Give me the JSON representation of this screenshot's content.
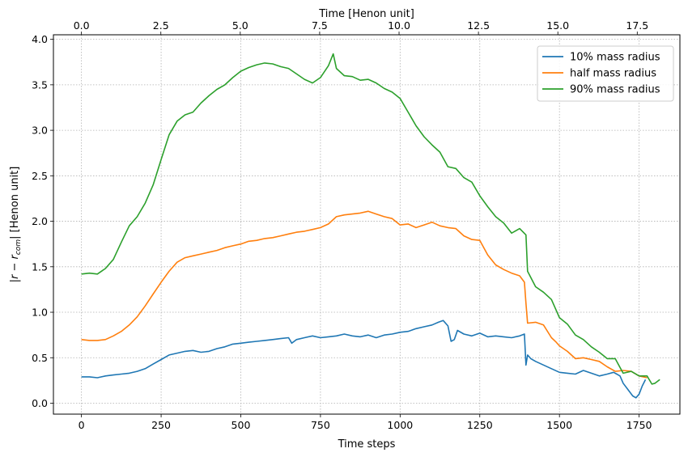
{
  "chart_data": {
    "type": "line",
    "xlabel": "Time steps",
    "x2label": "Time [Henon unit]",
    "ylabel": "|r − r_com| [Henon unit]",
    "xlim": [
      -88,
      1878
    ],
    "ylim": [
      -0.12,
      4.05
    ],
    "x2lim": [
      -0.883,
      18.843
    ],
    "xticks": [
      0,
      250,
      500,
      750,
      1000,
      1250,
      1500,
      1750
    ],
    "xtick_labels": [
      "0",
      "250",
      "500",
      "750",
      "1000",
      "1250",
      "1500",
      "1750"
    ],
    "x2ticks": [
      0.0,
      2.5,
      5.0,
      7.5,
      10.0,
      12.5,
      15.0,
      17.5
    ],
    "x2tick_labels": [
      "0.0",
      "2.5",
      "5.0",
      "7.5",
      "10.0",
      "12.5",
      "15.0",
      "17.5"
    ],
    "yticks": [
      0.0,
      0.5,
      1.0,
      1.5,
      2.0,
      2.5,
      3.0,
      3.5,
      4.0
    ],
    "ytick_labels": [
      "0.0",
      "0.5",
      "1.0",
      "1.5",
      "2.0",
      "2.5",
      "3.0",
      "3.5",
      "4.0"
    ],
    "grid": true,
    "legend_position": "top-right",
    "series": [
      {
        "name": "10% mass radius",
        "color": "#1f77b4",
        "x": [
          0,
          25,
          50,
          75,
          100,
          125,
          150,
          175,
          200,
          225,
          250,
          275,
          300,
          325,
          350,
          375,
          400,
          425,
          450,
          475,
          500,
          525,
          550,
          575,
          600,
          625,
          650,
          660,
          675,
          700,
          725,
          750,
          775,
          800,
          825,
          850,
          875,
          900,
          925,
          950,
          975,
          1000,
          1025,
          1050,
          1075,
          1100,
          1120,
          1135,
          1150,
          1160,
          1170,
          1180,
          1200,
          1225,
          1250,
          1275,
          1300,
          1325,
          1350,
          1375,
          1390,
          1395,
          1400,
          1410,
          1425,
          1450,
          1475,
          1500,
          1525,
          1550,
          1575,
          1600,
          1625,
          1650,
          1670,
          1680,
          1690,
          1700,
          1715,
          1730,
          1740,
          1750,
          1760,
          1770
        ],
        "y": [
          0.29,
          0.29,
          0.28,
          0.3,
          0.31,
          0.32,
          0.33,
          0.35,
          0.38,
          0.43,
          0.48,
          0.53,
          0.55,
          0.57,
          0.58,
          0.56,
          0.57,
          0.6,
          0.62,
          0.65,
          0.66,
          0.67,
          0.68,
          0.69,
          0.7,
          0.71,
          0.72,
          0.66,
          0.7,
          0.72,
          0.74,
          0.72,
          0.73,
          0.74,
          0.76,
          0.74,
          0.73,
          0.75,
          0.72,
          0.75,
          0.76,
          0.78,
          0.79,
          0.82,
          0.84,
          0.86,
          0.89,
          0.91,
          0.85,
          0.68,
          0.7,
          0.8,
          0.76,
          0.74,
          0.77,
          0.73,
          0.74,
          0.73,
          0.72,
          0.74,
          0.76,
          0.42,
          0.53,
          0.49,
          0.46,
          0.42,
          0.38,
          0.34,
          0.33,
          0.32,
          0.36,
          0.33,
          0.3,
          0.32,
          0.34,
          0.32,
          0.3,
          0.22,
          0.15,
          0.08,
          0.06,
          0.1,
          0.19,
          0.26
        ]
      },
      {
        "name": "half mass radius",
        "color": "#ff7f0e",
        "x": [
          0,
          25,
          50,
          75,
          100,
          125,
          150,
          175,
          200,
          225,
          250,
          275,
          300,
          325,
          350,
          375,
          400,
          425,
          450,
          475,
          500,
          525,
          550,
          575,
          600,
          625,
          650,
          675,
          700,
          725,
          750,
          775,
          800,
          825,
          850,
          875,
          900,
          925,
          950,
          975,
          1000,
          1025,
          1050,
          1075,
          1100,
          1125,
          1150,
          1175,
          1200,
          1225,
          1250,
          1275,
          1300,
          1325,
          1350,
          1375,
          1390,
          1395,
          1400,
          1425,
          1450,
          1475,
          1490,
          1500,
          1525,
          1550,
          1575,
          1600,
          1625,
          1650,
          1675,
          1700,
          1725,
          1750,
          1775
        ],
        "y": [
          0.7,
          0.69,
          0.69,
          0.7,
          0.74,
          0.79,
          0.86,
          0.95,
          1.07,
          1.2,
          1.33,
          1.45,
          1.55,
          1.6,
          1.62,
          1.64,
          1.66,
          1.68,
          1.71,
          1.73,
          1.75,
          1.78,
          1.79,
          1.81,
          1.82,
          1.84,
          1.86,
          1.88,
          1.89,
          1.91,
          1.93,
          1.97,
          2.05,
          2.07,
          2.08,
          2.09,
          2.11,
          2.08,
          2.05,
          2.03,
          1.96,
          1.97,
          1.93,
          1.96,
          1.99,
          1.95,
          1.93,
          1.92,
          1.84,
          1.8,
          1.79,
          1.63,
          1.52,
          1.47,
          1.43,
          1.4,
          1.33,
          1.1,
          0.88,
          0.89,
          0.86,
          0.72,
          0.67,
          0.63,
          0.57,
          0.49,
          0.5,
          0.48,
          0.46,
          0.4,
          0.35,
          0.36,
          0.35,
          0.3,
          0.28
        ]
      },
      {
        "name": "90% mass radius",
        "color": "#2ca02c",
        "x": [
          0,
          25,
          50,
          75,
          100,
          125,
          150,
          175,
          200,
          225,
          250,
          275,
          300,
          325,
          350,
          375,
          400,
          425,
          450,
          475,
          500,
          525,
          550,
          575,
          600,
          625,
          650,
          675,
          700,
          725,
          750,
          775,
          790,
          800,
          825,
          850,
          875,
          900,
          925,
          950,
          975,
          1000,
          1025,
          1050,
          1075,
          1100,
          1125,
          1150,
          1175,
          1200,
          1225,
          1250,
          1275,
          1300,
          1325,
          1350,
          1375,
          1395,
          1400,
          1425,
          1450,
          1475,
          1500,
          1525,
          1550,
          1575,
          1600,
          1625,
          1650,
          1675,
          1700,
          1725,
          1750,
          1775,
          1790,
          1800,
          1815
        ],
        "y": [
          1.42,
          1.43,
          1.42,
          1.48,
          1.58,
          1.77,
          1.95,
          2.05,
          2.2,
          2.4,
          2.68,
          2.95,
          3.1,
          3.17,
          3.2,
          3.3,
          3.38,
          3.45,
          3.5,
          3.58,
          3.65,
          3.69,
          3.72,
          3.74,
          3.73,
          3.7,
          3.68,
          3.62,
          3.56,
          3.52,
          3.58,
          3.71,
          3.84,
          3.68,
          3.6,
          3.59,
          3.55,
          3.56,
          3.52,
          3.46,
          3.42,
          3.35,
          3.2,
          3.05,
          2.93,
          2.84,
          2.76,
          2.6,
          2.58,
          2.48,
          2.43,
          2.28,
          2.16,
          2.05,
          1.98,
          1.87,
          1.92,
          1.85,
          1.45,
          1.28,
          1.22,
          1.14,
          0.94,
          0.87,
          0.75,
          0.7,
          0.62,
          0.56,
          0.49,
          0.49,
          0.33,
          0.35,
          0.3,
          0.3,
          0.21,
          0.22,
          0.26
        ]
      }
    ]
  }
}
